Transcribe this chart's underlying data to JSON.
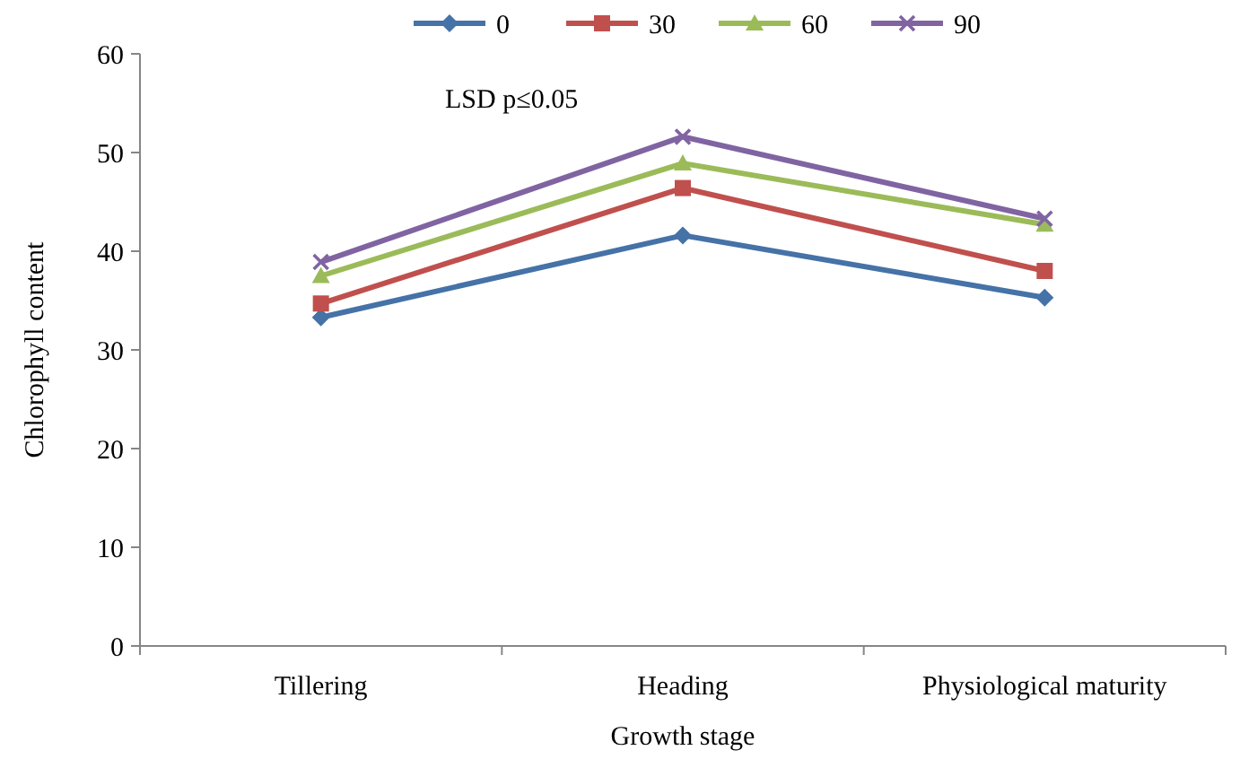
{
  "chart_data": {
    "type": "line",
    "xlabel": "Growth stage",
    "ylabel": "Chlorophyll content",
    "categories": [
      "Tillering",
      "Heading",
      "Physiological maturity"
    ],
    "series": [
      {
        "name": "0",
        "color": "#4572a7",
        "marker": "diamond",
        "values": [
          33.3,
          41.6,
          35.3
        ]
      },
      {
        "name": "30",
        "color": "#c0504d",
        "marker": "square",
        "values": [
          34.7,
          46.4,
          38.0
        ]
      },
      {
        "name": "60",
        "color": "#9bbb59",
        "marker": "triangle",
        "values": [
          37.5,
          48.9,
          42.7
        ]
      },
      {
        "name": "90",
        "color": "#8064a2",
        "marker": "cross",
        "values": [
          38.9,
          51.6,
          43.3
        ]
      }
    ],
    "ylim": [
      0,
      60
    ],
    "yticks": [
      0,
      10,
      20,
      30,
      40,
      50,
      60
    ],
    "legend": "top",
    "annotations": [
      "LSD p≤0.05"
    ]
  }
}
